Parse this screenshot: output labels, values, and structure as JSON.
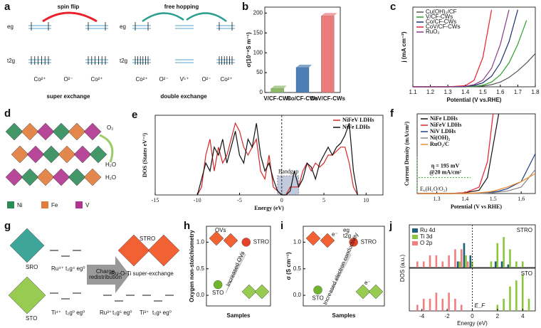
{
  "diagrams": {
    "a": {
      "label": "a",
      "spin_flip": "spin flip",
      "free_hopping": "free hopping",
      "eg": "eg",
      "t2g": "t2g",
      "left_ions": [
        "Co²⁺",
        "O²⁻",
        "Co²⁺"
      ],
      "left_caption": "super exchange",
      "right_ions": [
        "Co²⁺",
        "O²⁻",
        "V⁵⁺",
        "O²⁻",
        "Co²⁺"
      ],
      "right_caption": "double exchange"
    },
    "d": {
      "label": "d",
      "o2": "O₂",
      "h2o": [
        "H₂O",
        "H₂O"
      ],
      "legend": [
        "Ni",
        "Fe",
        "V"
      ]
    },
    "g": {
      "label": "g",
      "sro": "SRO",
      "sto": "STO",
      "arrow": [
        "Charge",
        "redistribution"
      ],
      "stro": "STRO",
      "super_exchange": "Ru-O-Ti super-exchange",
      "ions": [
        "Ru⁴⁺",
        "t₂g⁴ eg⁰",
        "Ti⁴⁺",
        "t₂g⁰ eg⁰",
        "Ru³⁺",
        "t₂g⁵ eg⁰",
        "Ti³⁺",
        "t₂g¹ eg⁰"
      ]
    }
  },
  "chart_data": [
    {
      "type": "bar",
      "panel": "b",
      "ylabel": "σ(10⁻⁸S m⁻¹)",
      "categories": [
        "V/CF-CWs",
        "Co/CF-CWs",
        "CoV/CF-CWs"
      ],
      "values": [
        10,
        63,
        193
      ],
      "colors": [
        "#8dbb67",
        "#4d7fb7",
        "#ea7c7c"
      ],
      "ylim": [
        0,
        215
      ],
      "yticks": [
        0,
        50,
        100,
        150,
        200
      ]
    },
    {
      "type": "line",
      "panel": "c",
      "xlabel": "Potential (V vs.RHE)",
      "ylabel": "j (mA cm⁻²)",
      "x": [
        1.1,
        1.2,
        1.3,
        1.4,
        1.45,
        1.5,
        1.55,
        1.6,
        1.65,
        1.7,
        1.75,
        1.8
      ],
      "xlim": [
        1.1,
        1.8
      ],
      "xticks": [
        1.1,
        1.2,
        1.3,
        1.4,
        1.5,
        1.6,
        1.7,
        1.8
      ],
      "ylim": [
        0,
        300
      ],
      "legend": "upper left",
      "series": [
        {
          "name": "Cu(OH)₂/CF",
          "color": "#555555",
          "values": [
            0,
            0,
            0,
            0,
            1,
            3,
            8,
            18,
            35,
            60,
            90,
            125
          ]
        },
        {
          "name": "V/CF-CWs",
          "color": "#2ca02c",
          "values": [
            0,
            0,
            0,
            0,
            2,
            6,
            18,
            45,
            90,
            160,
            250,
            null
          ]
        },
        {
          "name": "Co/CF-CWs",
          "color": "#1f2f6f",
          "values": [
            0,
            0,
            0,
            1,
            5,
            15,
            40,
            90,
            170,
            290,
            null,
            null
          ]
        },
        {
          "name": "CoV/CF-CWs",
          "color": "#e8212a",
          "values": [
            0,
            0,
            0,
            4,
            25,
            110,
            290,
            null,
            null,
            null,
            null,
            null
          ]
        },
        {
          "name": "RuO₂",
          "color": "#8b3a8b",
          "values": [
            0,
            0,
            0,
            2,
            8,
            25,
            70,
            160,
            290,
            null,
            null,
            null
          ]
        }
      ]
    },
    {
      "type": "line",
      "panel": "e",
      "xlabel": "Energy (eV)",
      "ylabel": "DOS (States eV⁻¹)",
      "annotations": [
        "Bandgap"
      ],
      "x": [
        -10,
        -9.5,
        -9,
        -8.5,
        -8,
        -7.5,
        -7,
        -6.5,
        -6,
        -5.5,
        -5,
        -4.5,
        -4,
        -3.5,
        -3,
        -2.5,
        -2,
        -1.5,
        -1,
        -0.5,
        0,
        0.5,
        1,
        1.5,
        2,
        2.5,
        3,
        3.5,
        4,
        4.5,
        5,
        5.5,
        6,
        6.5,
        7,
        7.5,
        8,
        8.5,
        9
      ],
      "xlim": [
        -15,
        12
      ],
      "xticks": [
        -15,
        -10,
        -5,
        0,
        5,
        10
      ],
      "ylim": [
        0,
        10
      ],
      "legend": "upper right",
      "series": [
        {
          "name": "NiFeV LDHs",
          "color": "#d62728",
          "values": [
            0,
            1,
            5,
            7,
            3,
            6,
            4,
            5,
            7,
            9,
            8,
            6,
            5,
            6,
            7,
            3,
            2,
            5,
            1,
            0.5,
            0,
            0,
            1,
            1,
            1,
            3,
            4,
            3,
            4,
            3.5,
            4,
            5,
            5,
            5.5,
            6,
            6,
            4,
            1,
            0
          ]
        },
        {
          "name": "NiFe LDHs",
          "color": "#111111",
          "values": [
            0,
            2,
            4,
            3,
            6,
            5,
            7,
            4,
            6,
            8,
            5,
            4,
            7,
            6,
            9,
            5,
            3,
            4,
            2,
            0.5,
            0,
            0,
            0.5,
            3,
            1,
            2,
            4,
            3.5,
            2,
            4,
            5,
            6,
            5,
            6,
            6.5,
            7.5,
            9,
            3,
            0
          ]
        }
      ]
    },
    {
      "type": "line",
      "panel": "f",
      "xlabel": "Potential (V vs RHE)",
      "ylabel": "Current Density (mA/cm²)",
      "annotations": [
        "η = 195 mV",
        "@20 mA/cm²",
        "E₀(H₂O/O₂)"
      ],
      "x": [
        1.23,
        1.3,
        1.35,
        1.4,
        1.45,
        1.48,
        1.5,
        1.52,
        1.55,
        1.6,
        1.65
      ],
      "xlim": [
        1.23,
        1.65
      ],
      "xticks": [
        1.3,
        1.4,
        1.5,
        1.6
      ],
      "ylim": [
        0,
        100
      ],
      "legend": "upper left",
      "series": [
        {
          "name": "NiFe LDHs",
          "color": "#111111",
          "values": [
            0,
            0,
            0,
            1,
            4,
            20,
            60,
            100,
            null,
            null,
            null
          ]
        },
        {
          "name": "NiFeV LDHs",
          "color": "#e8212a",
          "values": [
            0,
            0,
            0,
            1,
            8,
            40,
            100,
            null,
            null,
            null,
            null
          ]
        },
        {
          "name": "NiV LDHs",
          "color": "#1f3f8f",
          "values": [
            0,
            0,
            0,
            0,
            0.5,
            1,
            2,
            3,
            6,
            15,
            50
          ]
        },
        {
          "name": "Ni(OH)₂",
          "color": "#888888",
          "values": [
            0,
            0,
            0,
            0,
            0,
            0.5,
            1,
            2,
            3,
            8,
            30
          ]
        },
        {
          "name": "RuO₂/C",
          "color": "#f28c28",
          "values": [
            0,
            0,
            0,
            0,
            1,
            2,
            3,
            5,
            8,
            15,
            25
          ]
        }
      ]
    },
    {
      "type": "scatter",
      "panel": "h",
      "xlabel": "Samples",
      "ylabel": "Oxygen non-stoichiometry",
      "annotations": [
        "OVs",
        "Increased OVs"
      ],
      "point_labels": [
        "STO",
        "STRO"
      ],
      "values": [
        0.2,
        1.0
      ],
      "colors": [
        "#6fb52c",
        "#e8412a"
      ],
      "ylim": [
        -0.2,
        1.3
      ],
      "yticks": [
        {
          "value": 0,
          "label": "0.0"
        },
        {
          "value": 0.5,
          "label": "0.5"
        },
        {
          "value": 1,
          "label": "1.0"
        }
      ]
    },
    {
      "type": "scatter",
      "panel": "i",
      "xlabel": "Samples",
      "ylabel": "σ (S cm⁻¹)",
      "annotations": [
        "Increased electron conductivity",
        "eg",
        "t2g",
        "e⁻",
        "e⁻"
      ],
      "point_labels": [
        "STO",
        "STRO"
      ],
      "values": [
        0.1,
        1.0
      ],
      "colors": [
        "#6fb52c",
        "#e8412a"
      ],
      "ylim": [
        -0.2,
        1.3
      ],
      "yticks": [
        {
          "value": 0,
          "label": "0.0"
        },
        {
          "value": 0.5,
          "label": "0.5"
        },
        {
          "value": 1,
          "label": "1.0"
        }
      ]
    },
    {
      "type": "dos",
      "panel": "j",
      "xlabel": "Energy (eV)",
      "ylabel": "DOS (a.u.)",
      "annotations": [
        "E_F"
      ],
      "panels": [
        "STRO",
        "STO"
      ],
      "x": [
        -4.5,
        -4,
        -3.5,
        -3,
        -2.5,
        -2,
        -1.5,
        -1,
        -0.5,
        0,
        0.5,
        1,
        1.5,
        2,
        2.5,
        3,
        3.5,
        4,
        4.5
      ],
      "xlim": [
        -5,
        5
      ],
      "xticks": [
        -4,
        -2,
        0,
        2,
        4
      ],
      "ylim": [
        0,
        7
      ],
      "legend": "upper left",
      "series": [
        {
          "name": "Ru 4d",
          "color": "#1f5f7a",
          "values": [
            [
              0,
              0,
              0,
              0,
              0,
              0,
              0,
              1,
              4,
              2,
              0,
              0,
              0,
              1,
              1,
              0.5,
              0,
              0,
              0
            ],
            [
              0,
              0,
              0,
              0,
              0,
              0,
              0,
              0,
              0,
              0,
              0,
              0,
              0,
              0,
              0,
              0,
              0,
              0,
              0
            ]
          ]
        },
        {
          "name": "Ti 3d",
          "color": "#8cc63f",
          "values": [
            [
              0,
              0,
              0,
              0,
              0,
              0,
              0,
              1,
              2,
              1,
              0,
              0,
              1,
              4,
              5,
              3,
              1,
              1,
              0
            ],
            [
              0,
              0,
              0,
              0,
              0,
              0,
              0,
              0,
              0,
              0,
              0,
              0,
              0,
              1,
              2,
              4,
              5,
              6,
              2
            ]
          ]
        },
        {
          "name": "O 2p",
          "color": "#f08080",
          "values": [
            [
              1,
              1,
              2,
              2,
              1,
              2,
              3,
              3,
              1,
              0,
              0,
              0,
              0,
              0,
              0,
              0,
              0,
              0,
              0
            ],
            [
              1,
              2,
              2,
              3,
              2,
              3,
              2,
              1,
              0,
              0,
              0,
              0,
              0,
              0,
              0,
              0,
              0,
              0,
              0
            ]
          ]
        }
      ]
    }
  ]
}
